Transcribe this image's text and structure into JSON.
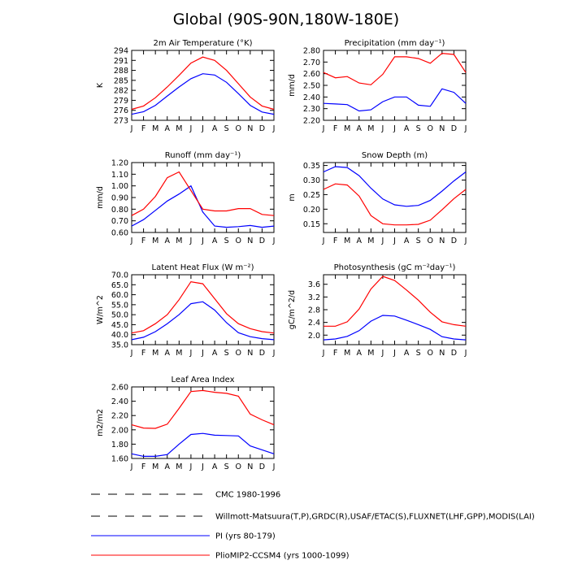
{
  "title": "Global (90S-90N,180W-180E)",
  "months": [
    "J",
    "F",
    "M",
    "A",
    "M",
    "J",
    "J",
    "A",
    "S",
    "O",
    "N",
    "D",
    "J"
  ],
  "legend": [
    {
      "label": "CMC 1980-1996",
      "color": "#000000",
      "style": "long-dash"
    },
    {
      "label": "Willmott-Matsuura(T,P),GRDC(R),USAF/ETAC(S),FLUXNET(LHF,GPP),MODIS(LAI)",
      "color": "#000000",
      "style": "dash"
    },
    {
      "label": "PI (yrs 80-179)",
      "color": "#0000ff",
      "style": "solid"
    },
    {
      "label": "PlioMIP2-CCSM4 (yrs 1000-1099)",
      "color": "#ff0000",
      "style": "solid"
    }
  ],
  "chart_data": [
    {
      "type": "line",
      "title": "2m Air Temperature (°K)",
      "ylabel": "K",
      "ylim": [
        273,
        294
      ],
      "yticks": [
        "273",
        "276",
        "279",
        "282",
        "285",
        "288",
        "291",
        "294"
      ],
      "ytick_values": [
        273,
        276,
        279,
        282,
        285,
        288,
        291,
        294
      ],
      "series": [
        {
          "name": "PI (yrs 80-179)",
          "color": "#0000ff",
          "values": [
            274.8,
            275.6,
            277.5,
            280.3,
            283.0,
            285.5,
            287.0,
            286.6,
            284.4,
            281.0,
            277.5,
            275.5,
            274.8
          ]
        },
        {
          "name": "PlioMIP2-CCSM4 (yrs 1000-1099)",
          "color": "#ff0000",
          "values": [
            276.3,
            277.3,
            279.8,
            283.0,
            286.5,
            290.2,
            292.0,
            291.0,
            288.0,
            284.0,
            280.0,
            277.3,
            276.3
          ]
        }
      ]
    },
    {
      "type": "line",
      "title": "Precipitation (mm day⁻¹)",
      "ylabel": "mm/d",
      "ylim": [
        2.2,
        2.8
      ],
      "yticks": [
        "2.20",
        "2.30",
        "2.40",
        "2.50",
        "2.60",
        "2.70",
        "2.80"
      ],
      "ytick_values": [
        2.2,
        2.3,
        2.4,
        2.5,
        2.6,
        2.7,
        2.8
      ],
      "series": [
        {
          "name": "PI (yrs 80-179)",
          "color": "#0000ff",
          "values": [
            2.345,
            2.34,
            2.335,
            2.28,
            2.29,
            2.36,
            2.4,
            2.4,
            2.33,
            2.32,
            2.47,
            2.44,
            2.345
          ]
        },
        {
          "name": "PlioMIP2-CCSM4 (yrs 1000-1099)",
          "color": "#ff0000",
          "values": [
            2.61,
            2.565,
            2.575,
            2.52,
            2.505,
            2.595,
            2.745,
            2.745,
            2.73,
            2.69,
            2.775,
            2.765,
            2.61
          ]
        }
      ]
    },
    {
      "type": "line",
      "title": "Runoff (mm day⁻¹)",
      "ylabel": "mm/d",
      "ylim": [
        0.6,
        1.2
      ],
      "yticks": [
        "0.60",
        "0.70",
        "0.80",
        "0.90",
        "1.00",
        "1.10",
        "1.20"
      ],
      "ytick_values": [
        0.6,
        0.7,
        0.8,
        0.9,
        1.0,
        1.1,
        1.2
      ],
      "series": [
        {
          "name": "PI (yrs 80-179)",
          "color": "#0000ff",
          "values": [
            0.655,
            0.71,
            0.79,
            0.87,
            0.93,
            1.0,
            0.775,
            0.655,
            0.645,
            0.65,
            0.66,
            0.645,
            0.655
          ]
        },
        {
          "name": "PlioMIP2-CCSM4 (yrs 1000-1099)",
          "color": "#ff0000",
          "values": [
            0.745,
            0.8,
            0.91,
            1.07,
            1.12,
            0.96,
            0.8,
            0.785,
            0.785,
            0.805,
            0.805,
            0.755,
            0.745
          ]
        }
      ]
    },
    {
      "type": "line",
      "title": "Snow Depth (m)",
      "ylabel": "m",
      "ylim": [
        0.12,
        0.36
      ],
      "yticks": [
        "0.15",
        "0.20",
        "0.25",
        "0.30",
        "0.35"
      ],
      "ytick_values": [
        0.15,
        0.2,
        0.25,
        0.3,
        0.35
      ],
      "series": [
        {
          "name": "PI (yrs 80-179)",
          "color": "#0000ff",
          "values": [
            0.328,
            0.346,
            0.343,
            0.315,
            0.272,
            0.235,
            0.215,
            0.21,
            0.213,
            0.23,
            0.262,
            0.297,
            0.328
          ]
        },
        {
          "name": "PlioMIP2-CCSM4 (yrs 1000-1099)",
          "color": "#ff0000",
          "values": [
            0.268,
            0.287,
            0.283,
            0.245,
            0.178,
            0.15,
            0.146,
            0.146,
            0.148,
            0.162,
            0.198,
            0.236,
            0.268
          ]
        }
      ]
    },
    {
      "type": "line",
      "title": "Latent Heat Flux (W m⁻²)",
      "ylabel": "W/m^2",
      "ylim": [
        35,
        70
      ],
      "yticks": [
        "35.0",
        "40.0",
        "45.0",
        "50.0",
        "55.0",
        "60.0",
        "65.0",
        "70.0"
      ],
      "ytick_values": [
        35,
        40,
        45,
        50,
        55,
        60,
        65,
        70
      ],
      "series": [
        {
          "name": "PI (yrs 80-179)",
          "color": "#0000ff",
          "values": [
            37.5,
            38.7,
            41.5,
            45.5,
            50.0,
            55.5,
            56.5,
            52.3,
            46.0,
            41.0,
            39.0,
            38.0,
            37.5
          ]
        },
        {
          "name": "PlioMIP2-CCSM4 (yrs 1000-1099)",
          "color": "#ff0000",
          "values": [
            40.8,
            42.0,
            45.5,
            50.0,
            57.5,
            66.5,
            65.5,
            58.0,
            50.5,
            45.5,
            43.0,
            41.5,
            40.8
          ]
        }
      ]
    },
    {
      "type": "line",
      "title": "Photosynthesis (gC m⁻²day⁻¹)",
      "ylabel": "gC/m^2/d",
      "ylim": [
        1.7,
        3.9
      ],
      "yticks": [
        "2.0",
        "2.4",
        "2.8",
        "3.2",
        "3.6"
      ],
      "ytick_values": [
        2.0,
        2.4,
        2.8,
        3.2,
        3.6
      ],
      "series": [
        {
          "name": "PI (yrs 80-179)",
          "color": "#0000ff",
          "values": [
            1.85,
            1.88,
            1.96,
            2.14,
            2.44,
            2.62,
            2.6,
            2.47,
            2.33,
            2.18,
            1.95,
            1.88,
            1.85
          ]
        },
        {
          "name": "PlioMIP2-CCSM4 (yrs 1000-1099)",
          "color": "#ff0000",
          "values": [
            2.28,
            2.28,
            2.42,
            2.82,
            3.45,
            3.85,
            3.72,
            3.42,
            3.1,
            2.72,
            2.42,
            2.33,
            2.28
          ]
        }
      ]
    },
    {
      "type": "line",
      "title": "Leaf Area Index",
      "ylabel": "m2/m2",
      "ylim": [
        1.6,
        2.6
      ],
      "yticks": [
        "1.60",
        "1.80",
        "2.00",
        "2.20",
        "2.40",
        "2.60"
      ],
      "ytick_values": [
        1.6,
        1.8,
        2.0,
        2.2,
        2.4,
        2.6
      ],
      "series": [
        {
          "name": "PI (yrs 80-179)",
          "color": "#0000ff",
          "values": [
            1.665,
            1.63,
            1.63,
            1.655,
            1.8,
            1.935,
            1.95,
            1.925,
            1.92,
            1.915,
            1.775,
            1.72,
            1.665
          ]
        },
        {
          "name": "PlioMIP2-CCSM4 (yrs 1000-1099)",
          "color": "#ff0000",
          "values": [
            2.07,
            2.025,
            2.02,
            2.08,
            2.3,
            2.535,
            2.55,
            2.525,
            2.51,
            2.47,
            2.22,
            2.14,
            2.07
          ]
        }
      ]
    }
  ]
}
